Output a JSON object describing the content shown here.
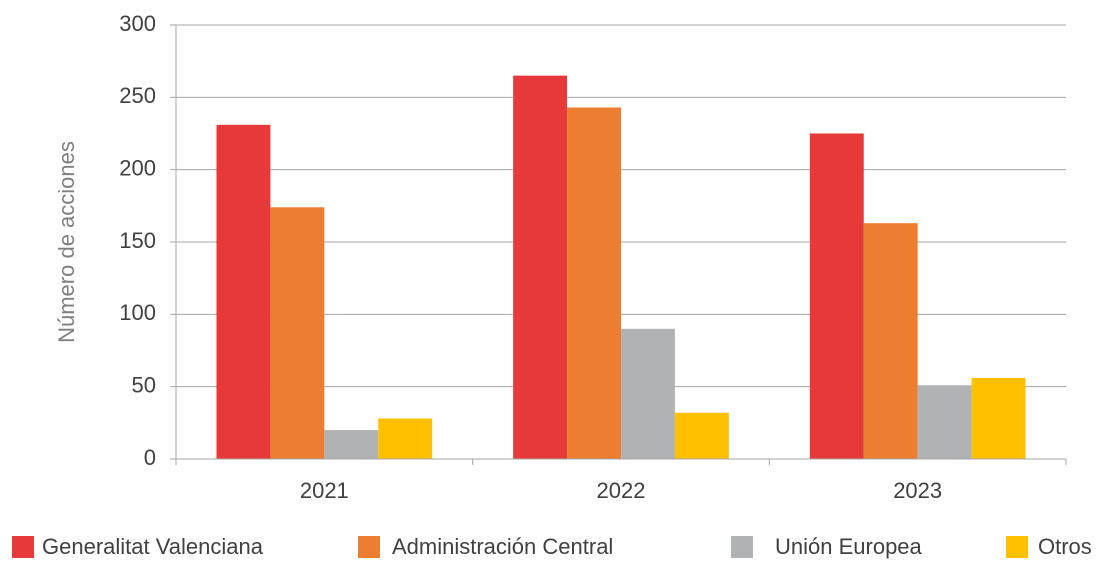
{
  "chart_data": {
    "type": "bar",
    "y_label": "Número de acciones",
    "categories": [
      "2021",
      "2022",
      "2023"
    ],
    "series": [
      {
        "name": "Generalitat Valenciana",
        "color": "#e8393a",
        "values": [
          231,
          265,
          225
        ]
      },
      {
        "name": "Administración Central",
        "color": "#ed7d31",
        "values": [
          174,
          243,
          163
        ]
      },
      {
        "name": "Unión Europea",
        "color": "#b1b2b4",
        "values": [
          20,
          90,
          51
        ]
      },
      {
        "name": "Otros",
        "color": "#ffc000",
        "values": [
          28,
          32,
          56
        ]
      }
    ],
    "ylim": [
      0,
      300
    ],
    "yticks": [
      0,
      50,
      100,
      150,
      200,
      250,
      300
    ],
    "grid": true,
    "legend": "bottom"
  }
}
